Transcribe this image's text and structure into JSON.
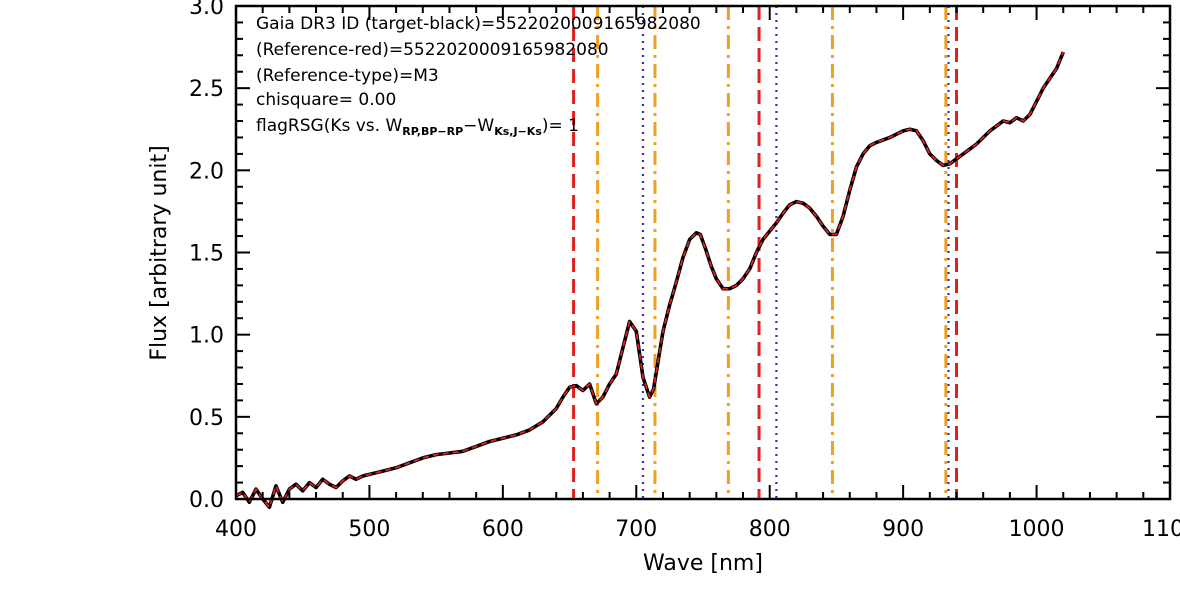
{
  "chart_data": {
    "type": "line",
    "xlabel": "Wave [nm]",
    "ylabel": "Flux [arbitrary unit]",
    "xlim": [
      400,
      1100
    ],
    "ylim": [
      0,
      3.0
    ],
    "xticks": [
      400,
      500,
      600,
      700,
      800,
      900,
      1000,
      1100
    ],
    "xtick_labels": [
      "400",
      "500",
      "600",
      "700",
      "800",
      "900",
      "1000",
      "1100"
    ],
    "yticks": [
      0,
      0.5,
      1.0,
      1.5,
      2.0,
      2.5,
      3.0
    ],
    "ytick_labels": [
      "0.0",
      "0.5",
      "1.0",
      "1.5",
      "2.0",
      "2.5",
      "3.0"
    ],
    "annotations": [
      "Gaia DR3 ID (target-black)=5522020009165982080",
      "(Reference-red)=5522020009165982080",
      "(Reference-type)=M3",
      "chisquare= 0.00"
    ],
    "flag_annotation": {
      "prefix": "flagRSG(Ks vs. W",
      "sub1": "RP,BP−RP",
      "mid": "−W",
      "sub2": "Ks,J−Ks",
      "suffix": ")= 1"
    },
    "series": [
      {
        "color": "#000000",
        "style": "solid",
        "x": [
          400,
          405,
          410,
          415,
          420,
          425,
          430,
          435,
          440,
          445,
          450,
          455,
          460,
          465,
          470,
          475,
          480,
          485,
          490,
          495,
          500,
          510,
          520,
          530,
          540,
          550,
          560,
          570,
          580,
          590,
          600,
          610,
          620,
          630,
          640,
          645,
          650,
          655,
          660,
          665,
          670,
          675,
          680,
          685,
          690,
          695,
          700,
          705,
          710,
          713,
          716,
          720,
          725,
          730,
          735,
          740,
          745,
          748,
          752,
          756,
          760,
          765,
          770,
          775,
          780,
          785,
          790,
          795,
          800,
          805,
          810,
          815,
          820,
          825,
          830,
          835,
          840,
          845,
          850,
          855,
          860,
          865,
          870,
          875,
          880,
          890,
          900,
          905,
          910,
          915,
          920,
          925,
          930,
          935,
          940,
          945,
          950,
          955,
          960,
          965,
          970,
          975,
          980,
          985,
          990,
          995,
          1000,
          1005,
          1010,
          1015,
          1020
        ],
        "y": [
          0.02,
          0.04,
          -0.02,
          0.06,
          0.0,
          -0.05,
          0.08,
          -0.02,
          0.06,
          0.09,
          0.05,
          0.1,
          0.07,
          0.12,
          0.09,
          0.07,
          0.11,
          0.14,
          0.12,
          0.14,
          0.15,
          0.17,
          0.19,
          0.22,
          0.25,
          0.27,
          0.28,
          0.29,
          0.32,
          0.35,
          0.37,
          0.39,
          0.42,
          0.47,
          0.55,
          0.62,
          0.68,
          0.69,
          0.66,
          0.7,
          0.58,
          0.62,
          0.7,
          0.76,
          0.92,
          1.08,
          1.02,
          0.74,
          0.62,
          0.67,
          0.82,
          1.02,
          1.18,
          1.32,
          1.47,
          1.58,
          1.62,
          1.61,
          1.52,
          1.42,
          1.34,
          1.28,
          1.28,
          1.3,
          1.34,
          1.4,
          1.5,
          1.58,
          1.63,
          1.68,
          1.74,
          1.79,
          1.81,
          1.8,
          1.77,
          1.72,
          1.66,
          1.61,
          1.61,
          1.72,
          1.88,
          2.02,
          2.1,
          2.15,
          2.17,
          2.2,
          2.24,
          2.25,
          2.24,
          2.18,
          2.1,
          2.06,
          2.03,
          2.04,
          2.07,
          2.1,
          2.13,
          2.16,
          2.2,
          2.24,
          2.27,
          2.3,
          2.29,
          2.32,
          2.3,
          2.34,
          2.42,
          2.5,
          2.56,
          2.62,
          2.72
        ]
      },
      {
        "color": "#e02020",
        "style": "dashed",
        "x": [
          400,
          405,
          410,
          415,
          420,
          425,
          430,
          435,
          440,
          445,
          450,
          455,
          460,
          465,
          470,
          475,
          480,
          485,
          490,
          495,
          500,
          510,
          520,
          530,
          540,
          550,
          560,
          570,
          580,
          590,
          600,
          610,
          620,
          630,
          640,
          645,
          650,
          655,
          660,
          665,
          670,
          675,
          680,
          685,
          690,
          695,
          700,
          705,
          710,
          713,
          716,
          720,
          725,
          730,
          735,
          740,
          745,
          748,
          752,
          756,
          760,
          765,
          770,
          775,
          780,
          785,
          790,
          795,
          800,
          805,
          810,
          815,
          820,
          825,
          830,
          835,
          840,
          845,
          850,
          855,
          860,
          865,
          870,
          875,
          880,
          890,
          900,
          905,
          910,
          915,
          920,
          925,
          930,
          935,
          940,
          945,
          950,
          955,
          960,
          965,
          970,
          975,
          980,
          985,
          990,
          995,
          1000,
          1005,
          1010,
          1015,
          1020
        ],
        "y": [
          0.02,
          0.04,
          -0.02,
          0.06,
          0.0,
          -0.05,
          0.08,
          -0.02,
          0.06,
          0.09,
          0.05,
          0.1,
          0.07,
          0.12,
          0.09,
          0.07,
          0.11,
          0.14,
          0.12,
          0.14,
          0.15,
          0.17,
          0.19,
          0.22,
          0.25,
          0.27,
          0.28,
          0.29,
          0.32,
          0.35,
          0.37,
          0.39,
          0.42,
          0.47,
          0.55,
          0.62,
          0.68,
          0.69,
          0.66,
          0.7,
          0.58,
          0.62,
          0.7,
          0.76,
          0.92,
          1.08,
          1.02,
          0.74,
          0.62,
          0.67,
          0.82,
          1.02,
          1.18,
          1.32,
          1.47,
          1.58,
          1.62,
          1.61,
          1.52,
          1.42,
          1.34,
          1.28,
          1.28,
          1.3,
          1.34,
          1.4,
          1.5,
          1.58,
          1.63,
          1.68,
          1.74,
          1.79,
          1.81,
          1.8,
          1.77,
          1.72,
          1.66,
          1.61,
          1.61,
          1.72,
          1.88,
          2.02,
          2.1,
          2.15,
          2.17,
          2.2,
          2.24,
          2.25,
          2.24,
          2.18,
          2.1,
          2.06,
          2.03,
          2.04,
          2.07,
          2.1,
          2.13,
          2.16,
          2.2,
          2.24,
          2.27,
          2.3,
          2.29,
          2.32,
          2.3,
          2.34,
          2.42,
          2.5,
          2.56,
          2.62,
          2.72
        ]
      }
    ],
    "vertical_lines": [
      {
        "x": 653,
        "color": "#e02020",
        "style": "dashed"
      },
      {
        "x": 792,
        "color": "#e02020",
        "style": "dashed"
      },
      {
        "x": 940,
        "color": "#e02020",
        "style": "dashed"
      },
      {
        "x": 671,
        "color": "#f0a020",
        "style": "dashdot"
      },
      {
        "x": 714,
        "color": "#f0a020",
        "style": "dashdot"
      },
      {
        "x": 769,
        "color": "#f0a020",
        "style": "dashdot"
      },
      {
        "x": 847,
        "color": "#f0a020",
        "style": "dashdot"
      },
      {
        "x": 932,
        "color": "#f0a020",
        "style": "dashdot"
      },
      {
        "x": 705,
        "color": "#3030b0",
        "style": "dotted"
      },
      {
        "x": 805,
        "color": "#3030b0",
        "style": "dotted"
      },
      {
        "x": 934,
        "color": "#3030b0",
        "style": "dotted"
      }
    ]
  }
}
